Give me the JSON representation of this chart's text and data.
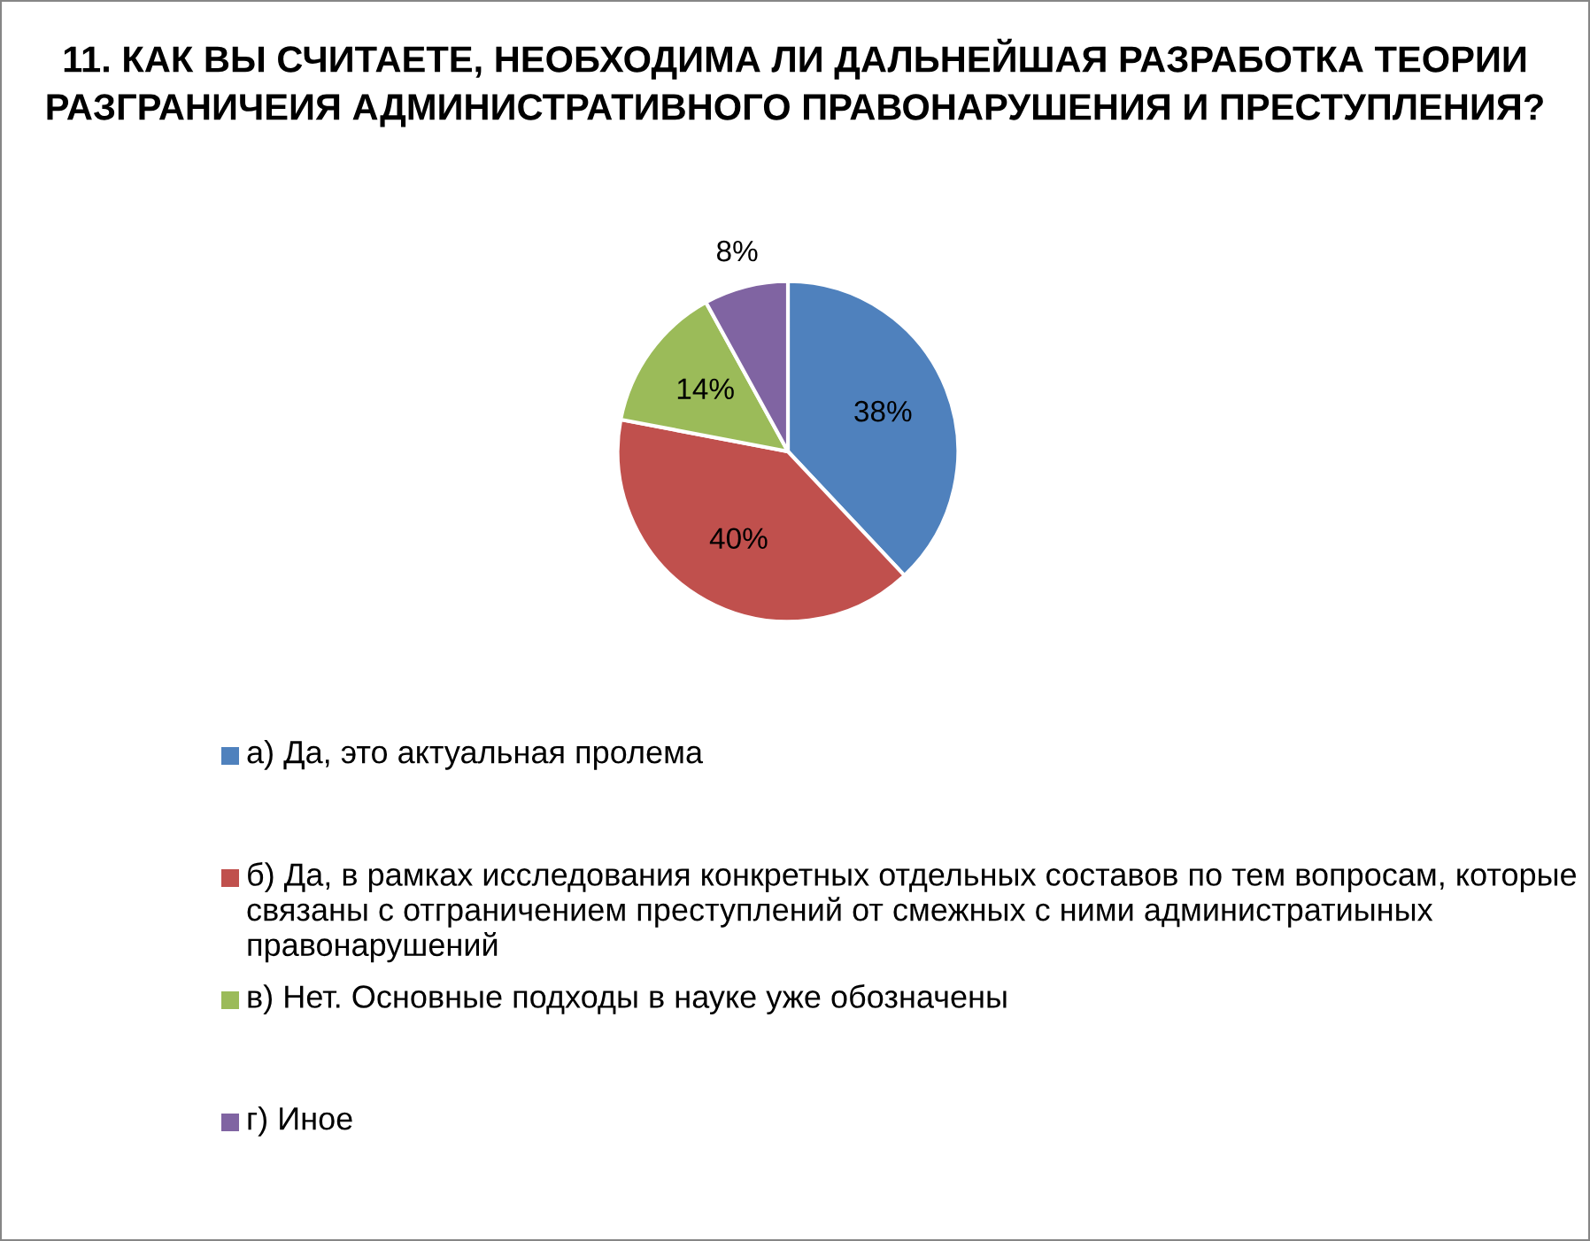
{
  "chart_data": {
    "type": "pie",
    "title": "11. КАК ВЫ СЧИТАЕТЕ, НЕОБХОДИМА ЛИ ДАЛЬНЕЙШАЯ РАЗРАБОТКА ТЕОРИИ РАЗГРАНИЧЕИЯ АДМИНИСТРАТИВНОГО ПРАВОНАРУШЕНИЯ И ПРЕСТУПЛЕНИЯ?",
    "categories": [
      "а) Да, это актуальная пролема",
      "б) Да, в рамках исследования конкретных отдельных составов по тем вопросам, которые связаны с отграничением преступлений от смежных с ними администратиыных правонарушений",
      "в) Нет. Основные подходы в науке уже обозначены",
      "г) Иное"
    ],
    "values": [
      38,
      40,
      14,
      8
    ],
    "value_labels": [
      "38%",
      "40%",
      "14%",
      "8%"
    ],
    "colors": [
      "#4f81bd",
      "#c0504d",
      "#9bbb59",
      "#8064a2"
    ],
    "legend": "bottom"
  }
}
